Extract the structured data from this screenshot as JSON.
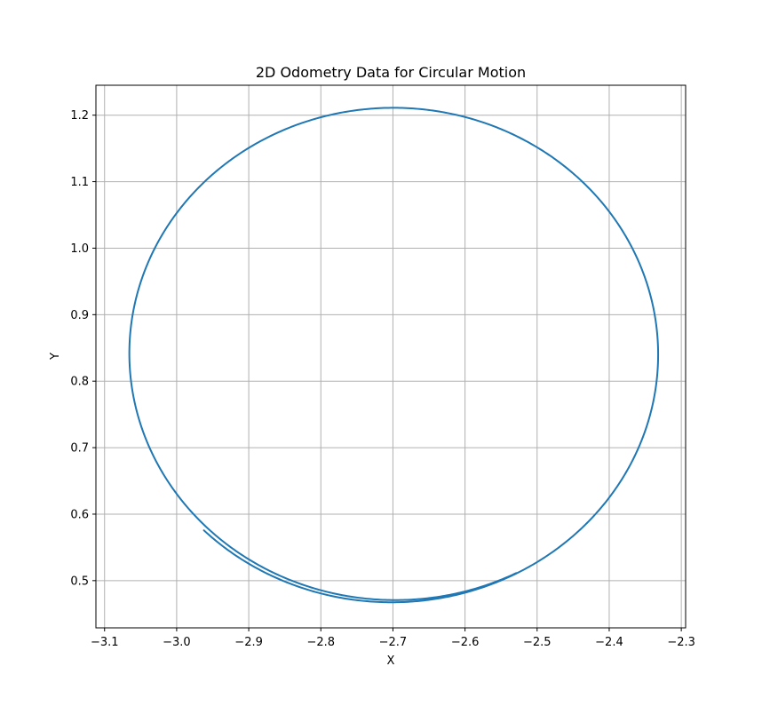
{
  "chart_data": {
    "type": "line",
    "title": "2D Odometry Data for Circular Motion",
    "xlabel": "X",
    "ylabel": "Y",
    "xlim": [
      -3.112,
      -2.294
    ],
    "ylim": [
      0.429,
      1.245
    ],
    "xticks": [
      -3.1,
      -3.0,
      -2.9,
      -2.8,
      -2.7,
      -2.6,
      -2.5,
      -2.4,
      -2.3
    ],
    "xtick_labels": [
      "−3.1",
      "−3.0",
      "−2.9",
      "−2.8",
      "−2.7",
      "−2.6",
      "−2.5",
      "−2.4",
      "−2.3"
    ],
    "yticks": [
      0.5,
      0.6,
      0.7,
      0.8,
      0.9,
      1.0,
      1.1,
      1.2
    ],
    "ytick_labels": [
      "0.5",
      "0.6",
      "0.7",
      "0.8",
      "0.9",
      "1.0",
      "1.1",
      "1.2"
    ],
    "grid": true,
    "series": [
      {
        "color": "#1f77b4",
        "trajectory": {
          "center_x": -2.702,
          "center_y": 0.838,
          "radius_x": 0.368,
          "radius_y": 0.371,
          "start_angle_deg": 225,
          "loops": 1.2,
          "drift_x": 0.006,
          "drift_y": 0.004
        }
      }
    ]
  }
}
